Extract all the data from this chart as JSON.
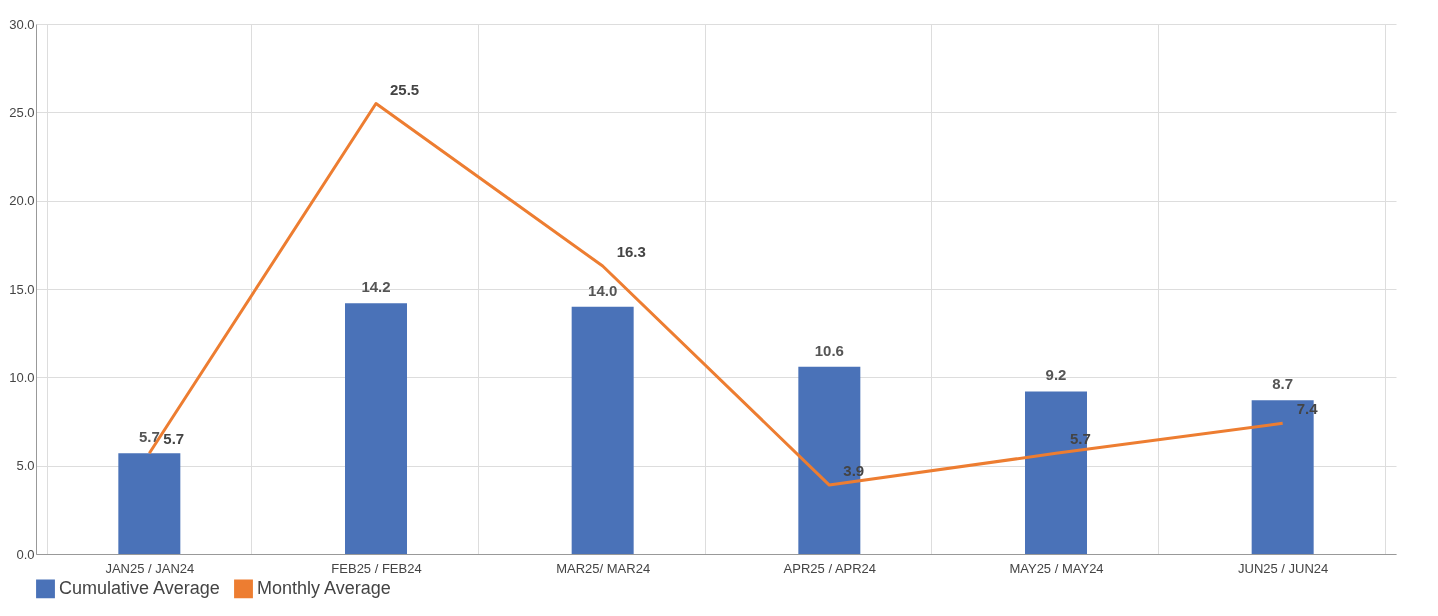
{
  "chart_data": {
    "type": "bar",
    "categories": [
      "JAN25 / JAN24",
      "FEB25 / FEB24",
      "MAR25/ MAR24",
      "APR25 / APR24",
      "MAY25 / MAY24",
      "JUN25 / JUN24"
    ],
    "series": [
      {
        "name": "Cumulative Average",
        "color": "#4a72b8",
        "values": [
          5.7,
          14.2,
          14.0,
          10.6,
          9.2,
          8.7
        ],
        "value_labels": [
          "5.7",
          "14.2",
          "14.0",
          "10.6",
          "9.2",
          "8.7"
        ]
      },
      {
        "name": "Monthly Average",
        "type": "line",
        "color": "#ed7d31",
        "values": [
          5.7,
          25.5,
          16.3,
          3.9,
          5.7,
          7.4
        ],
        "value_labels": [
          "5.7",
          "25.5",
          "16.3",
          "3.9",
          "5.7",
          "7.4"
        ]
      }
    ],
    "ylim": [
      0,
      30
    ],
    "yticks": [
      {
        "value": 0,
        "label": "0.0"
      },
      {
        "value": 5,
        "label": "5.0"
      },
      {
        "value": 10,
        "label": "10.0"
      },
      {
        "value": 15,
        "label": "15.0"
      },
      {
        "value": 20,
        "label": "20.0"
      },
      {
        "value": 25,
        "label": "25.0"
      },
      {
        "value": 30,
        "label": "30.0"
      }
    ],
    "grid": true,
    "legend": "bottom",
    "line_style": "solid"
  }
}
